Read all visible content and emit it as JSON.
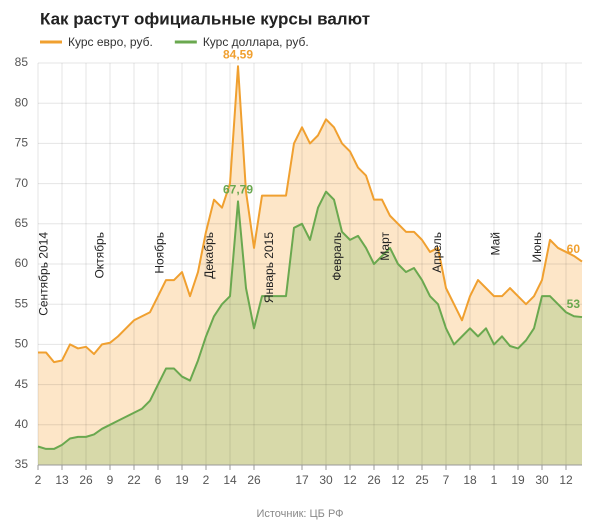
{
  "chart_data": {
    "type": "area",
    "title": "Как растут официальные курсы валют",
    "source": "Источник: ЦБ РФ",
    "categories": [
      "2",
      null,
      null,
      "13",
      null,
      null,
      "26",
      null,
      null,
      "9",
      null,
      null,
      "22",
      null,
      null,
      "6",
      null,
      null,
      "19",
      null,
      null,
      "2",
      null,
      null,
      "14",
      null,
      null,
      "26",
      null,
      null,
      null,
      null,
      null,
      "17",
      null,
      null,
      "30",
      null,
      null,
      "12",
      null,
      null,
      "26",
      null,
      null,
      "12",
      null,
      null,
      "25",
      null,
      null,
      "7",
      null,
      null,
      "18",
      null,
      null,
      "1",
      null,
      null,
      "19",
      null,
      null,
      "30",
      null,
      null,
      "12",
      null,
      null
    ],
    "series": [
      {
        "name": "Курс евро, руб.",
        "color": "#f0a030",
        "area_color": "#fde6c8",
        "values": [
          49,
          49,
          47.8,
          48,
          50,
          49.5,
          49.7,
          48.8,
          50,
          50.2,
          51,
          52,
          53,
          53.5,
          54,
          56,
          58,
          58,
          59,
          56,
          59,
          64,
          68,
          67,
          70,
          84.59,
          69,
          62,
          68.5,
          68.5,
          68.5,
          68.5,
          75,
          77,
          75,
          76,
          78,
          77,
          75,
          74,
          72,
          71,
          68,
          68,
          66,
          65,
          64,
          64,
          63,
          61.5,
          62,
          57,
          55,
          53,
          56,
          58,
          57,
          56,
          56,
          57,
          56,
          55,
          56,
          58,
          63,
          62,
          61.5,
          61,
          60.3
        ]
      },
      {
        "name": "Курс доллара, руб.",
        "color": "#6aa84f",
        "area_color": "#d7d9a9",
        "values": [
          37.3,
          37,
          37,
          37.5,
          38.3,
          38.5,
          38.5,
          38.8,
          39.5,
          40,
          40.5,
          41,
          41.5,
          42,
          43,
          45,
          47,
          47,
          46,
          45.5,
          48,
          51,
          53.5,
          55,
          56,
          67.79,
          57,
          52,
          56,
          56,
          56,
          56,
          64.5,
          65,
          63,
          67,
          69,
          68,
          64,
          63,
          63.5,
          62,
          60,
          61,
          62,
          60,
          59,
          59.5,
          58,
          56,
          55,
          52,
          50,
          51,
          52,
          51,
          52,
          50,
          51,
          49.8,
          49.5,
          50.5,
          52,
          56,
          56,
          55,
          54,
          53.5,
          53.4
        ]
      }
    ],
    "annotations": [
      {
        "text": "84,59",
        "series": 0,
        "index": 25
      },
      {
        "text": "67,79",
        "series": 1,
        "index": 25
      },
      {
        "text": "60",
        "series": 0,
        "index": 68
      },
      {
        "text": "53",
        "series": 1,
        "index": 68
      }
    ],
    "month_labels": [
      {
        "text": "Сентябрь 2014",
        "index": 0.8
      },
      {
        "text": "Октябрь",
        "index": 7.8
      },
      {
        "text": "Ноябрь",
        "index": 15.3
      },
      {
        "text": "Декабрь",
        "index": 21.5
      },
      {
        "text": "Январь 2015",
        "index": 29
      },
      {
        "text": "Февраль",
        "index": 37.5
      },
      {
        "text": "Март",
        "index": 43.5
      },
      {
        "text": "Апрель",
        "index": 50
      },
      {
        "text": "Май",
        "index": 57.3
      },
      {
        "text": "Июнь",
        "index": 62.5
      }
    ],
    "ylim": [
      35,
      85
    ],
    "yticks": [
      35,
      40,
      45,
      50,
      55,
      60,
      65,
      70,
      75,
      80,
      85
    ],
    "grid": true
  }
}
